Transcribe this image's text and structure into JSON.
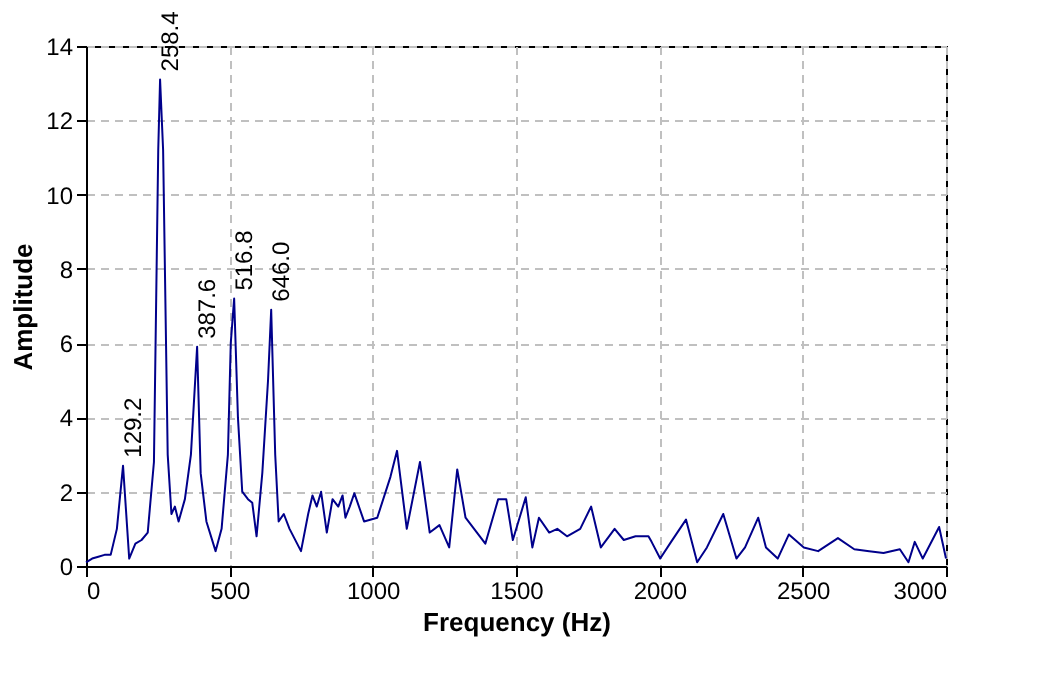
{
  "chart_data": {
    "type": "line",
    "xlabel": "Frequency (Hz)",
    "ylabel": "Amplitude",
    "xlim": [
      0,
      3000
    ],
    "xticks": [
      0,
      500,
      1000,
      1500,
      2000,
      2500,
      3000
    ],
    "ylim": [
      0,
      14
    ],
    "yticks": [
      0,
      2,
      4,
      6,
      8,
      10,
      12,
      14
    ],
    "grid": true,
    "marker": "none",
    "line_style": "solid",
    "series": [
      {
        "color": "#00008b",
        "x": [
          0,
          21.5,
          43,
          64.6,
          86.1,
          107.7,
          129.2,
          150.7,
          172.3,
          193.8,
          215.3,
          237,
          252,
          258.4,
          269,
          285,
          298,
          310,
          323,
          345,
          366,
          387.6,
          400,
          420,
          452,
          473,
          495,
          505,
          516.8,
          530,
          545,
          565,
          580,
          595,
          615,
          635,
          646,
          660,
          672,
          690,
          710,
          750,
          775,
          790,
          805,
          820,
          840,
          860,
          880,
          895,
          905,
          920,
          936,
          970,
          1016,
          1062,
          1085,
          1119,
          1165,
          1199,
          1233,
          1267,
          1295,
          1324,
          1393,
          1438,
          1466,
          1489,
          1534,
          1557,
          1580,
          1616,
          1644,
          1678,
          1724,
          1762,
          1796,
          1844,
          1876,
          1917,
          1962,
          1973,
          2003,
          2041,
          2093,
          2132,
          2166,
          2223,
          2269,
          2299,
          2345,
          2372,
          2413,
          2452,
          2504,
          2554,
          2623,
          2680,
          2732,
          2782,
          2839,
          2869,
          2891,
          2919,
          2976,
          3000
        ],
        "values": [
          0.1,
          0.2,
          0.25,
          0.3,
          0.3,
          1.0,
          2.7,
          0.2,
          0.6,
          0.7,
          0.9,
          2.8,
          11.2,
          13.1,
          11.2,
          3.0,
          1.4,
          1.6,
          1.2,
          1.8,
          3.0,
          5.9,
          2.5,
          1.2,
          0.4,
          1.0,
          3.0,
          6.0,
          7.2,
          4.0,
          2.0,
          1.8,
          1.7,
          0.8,
          2.5,
          5.0,
          6.9,
          3.0,
          1.2,
          1.4,
          1.0,
          0.4,
          1.4,
          1.9,
          1.6,
          2.0,
          0.9,
          1.8,
          1.6,
          1.9,
          1.3,
          1.6,
          1.96,
          1.2,
          1.3,
          2.4,
          3.1,
          1.0,
          2.8,
          0.9,
          1.1,
          0.5,
          2.6,
          1.3,
          0.6,
          1.8,
          1.8,
          0.7,
          1.85,
          0.5,
          1.3,
          0.9,
          1.0,
          0.8,
          1.0,
          1.6,
          0.5,
          1.0,
          0.7,
          0.8,
          0.8,
          0.65,
          0.2,
          0.65,
          1.25,
          0.1,
          0.5,
          1.4,
          0.2,
          0.5,
          1.3,
          0.5,
          0.2,
          0.85,
          0.5,
          0.4,
          0.75,
          0.45,
          0.4,
          0.35,
          0.45,
          0.1,
          0.65,
          0.2,
          1.05,
          0.2
        ]
      }
    ],
    "annotations": [
      {
        "text": "129.2",
        "x": 129.2,
        "y": 2.7
      },
      {
        "text": "258.4",
        "x": 258.4,
        "y": 13.1
      },
      {
        "text": "387.6",
        "x": 387.6,
        "y": 5.9
      },
      {
        "text": "516.8",
        "x": 516.8,
        "y": 7.2
      },
      {
        "text": "646.0",
        "x": 646.0,
        "y": 6.9
      }
    ]
  }
}
